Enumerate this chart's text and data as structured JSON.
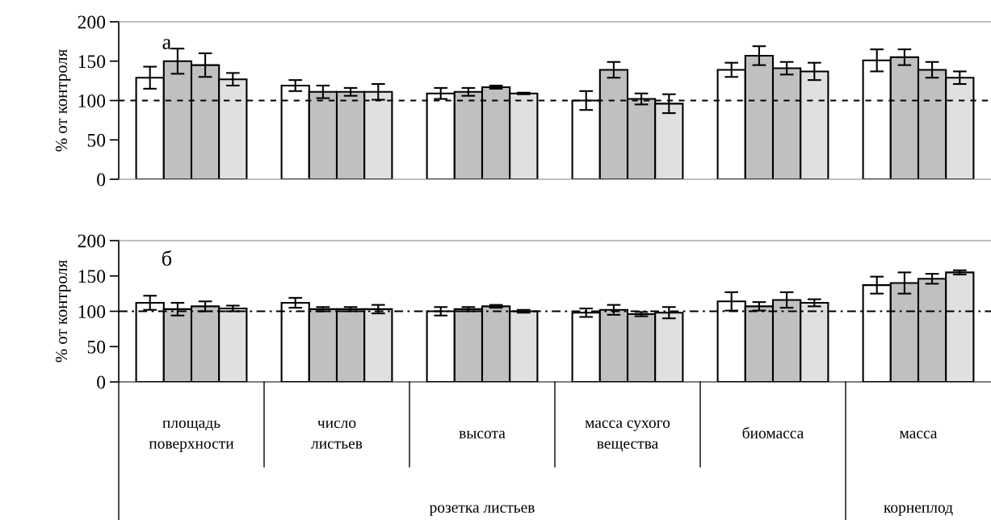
{
  "chart_data": [
    {
      "type": "bar",
      "title": "а",
      "ylabel": "% от контроля",
      "ylim": [
        0,
        200
      ],
      "yticks": [
        0,
        50,
        100,
        150,
        200
      ],
      "tick_labels": "y",
      "categories": [
        null,
        null,
        null,
        null,
        null,
        null
      ],
      "series": [
        {
          "color": "#ffffff",
          "values": [
            129,
            119,
            109,
            100,
            139,
            151
          ],
          "errors": [
            14,
            7,
            7,
            12,
            9,
            14
          ]
        },
        {
          "color": "#c0c0c0",
          "values": [
            150,
            111,
            111,
            139,
            157,
            155
          ],
          "errors": [
            16,
            8,
            5,
            10,
            12,
            10
          ]
        },
        {
          "color": "#c0c0c0",
          "values": [
            145,
            111,
            117,
            102,
            141,
            139
          ],
          "errors": [
            15,
            5,
            2,
            7,
            8,
            10
          ]
        },
        {
          "color": "#e0e0e0",
          "values": [
            127,
            111,
            109,
            96,
            137,
            129
          ],
          "errors": [
            8,
            10,
            1,
            12,
            11,
            8
          ]
        }
      ],
      "ref_lines": [
        {
          "axis": "y",
          "value": 100,
          "line_style": "dashed",
          "color": "#000000"
        }
      ]
    },
    {
      "type": "bar",
      "title": "б",
      "ylabel": "% от контроля",
      "ylim": [
        0,
        200
      ],
      "yticks": [
        0,
        50,
        100,
        150,
        200
      ],
      "categories": [
        "площадь поверхности",
        "число листьев",
        "высота",
        "масса сухого вещества",
        "биомасса",
        "масса"
      ],
      "series": [
        {
          "color": "#ffffff",
          "values": [
            112,
            112,
            100,
            98,
            114,
            137
          ],
          "errors": [
            10,
            7,
            6,
            6,
            13,
            12
          ]
        },
        {
          "color": "#c0c0c0",
          "values": [
            103,
            103,
            103,
            102,
            107,
            140
          ],
          "errors": [
            9,
            3,
            3,
            7,
            6,
            15
          ]
        },
        {
          "color": "#c0c0c0",
          "values": [
            107,
            103,
            107,
            96,
            116,
            146
          ],
          "errors": [
            7,
            3,
            2,
            3,
            11,
            7
          ]
        },
        {
          "color": "#e0e0e0",
          "values": [
            104,
            103,
            100,
            98,
            112,
            155
          ],
          "errors": [
            4,
            6,
            2,
            8,
            5,
            3
          ]
        }
      ],
      "ref_lines": [
        {
          "axis": "y",
          "value": 100,
          "line_style": "dashdot",
          "color": "#000000"
        }
      ],
      "annotations": [
        "розетка листьев",
        "корнеплод"
      ]
    }
  ]
}
